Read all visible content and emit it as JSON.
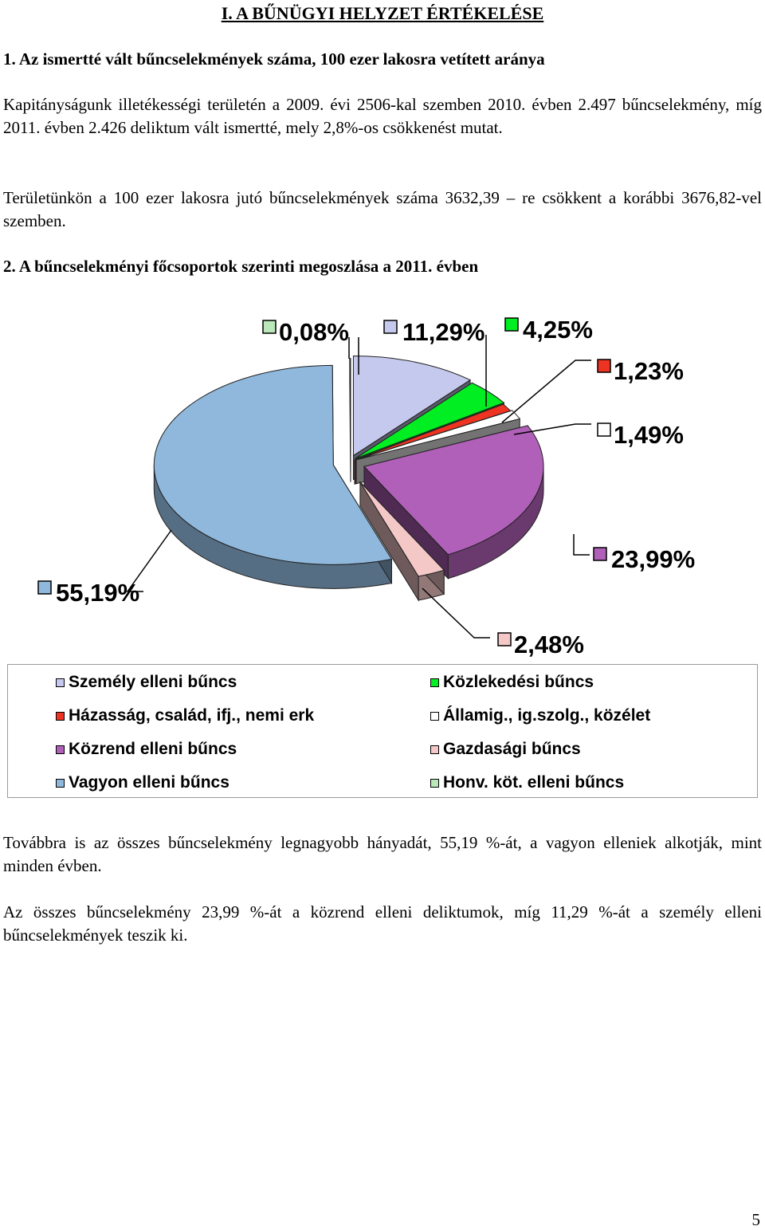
{
  "heading": "I. A BŰNÜGYI HELYZET ÉRTÉKELÉSE",
  "section1_title": "1.  Az ismertté vált bűncselekmények száma, 100 ezer lakosra vetített aránya",
  "para1": "Kapitányságunk illetékességi területén a 2009. évi 2506-kal szemben 2010. évben 2.497 bűncselekmény, míg 2011. évben 2.426 deliktum vált ismertté, mely 2,8%-os csökkenést mutat.",
  "para2": "Területünkön a 100 ezer lakosra jutó bűncselekmények száma 3632,39 – re csökkent a korábbi 3676,82-vel szemben.",
  "section2_title": "2. A bűncselekményi főcsoportok szerinti megoszlása a 2011. évben",
  "chart_data": {
    "type": "pie",
    "title": "",
    "categories": [
      "Személy elleni bűncs",
      "Közlekedési bűncs",
      "Házasság, család, ifj., nemi erk",
      "Államig., ig.szolg., közélet",
      "Közrend elleni bűncs",
      "Gazdasági bűncs",
      "Vagyon elleni bűncs",
      "Honv. köt. elleni bűncs"
    ],
    "values": [
      11.29,
      4.25,
      1.23,
      1.49,
      23.99,
      2.48,
      55.19,
      0.08
    ],
    "labels": [
      "11,29%",
      "4,25%",
      "1,23%",
      "1,49%",
      "23,99%",
      "2,48%",
      "55,19%",
      "0,08%"
    ],
    "colors": [
      "#c6c9ee",
      "#00ee22",
      "#ee3322",
      "#ffffff",
      "#b060b8",
      "#f5c8c8",
      "#8fb8dc",
      "#bbe8bb"
    ],
    "legend_position": "bottom"
  },
  "para3": "Továbbra is az összes bűncselekmény legnagyobb hányadát, 55,19 %-át, a vagyon elleniek alkotják, mint minden évben.",
  "para4": "Az összes bűncselekmény 23,99 %-át a közrend elleni deliktumok, míg 11,29 %-át a személy elleni bűncselekmények teszik ki.",
  "page_number": "5"
}
